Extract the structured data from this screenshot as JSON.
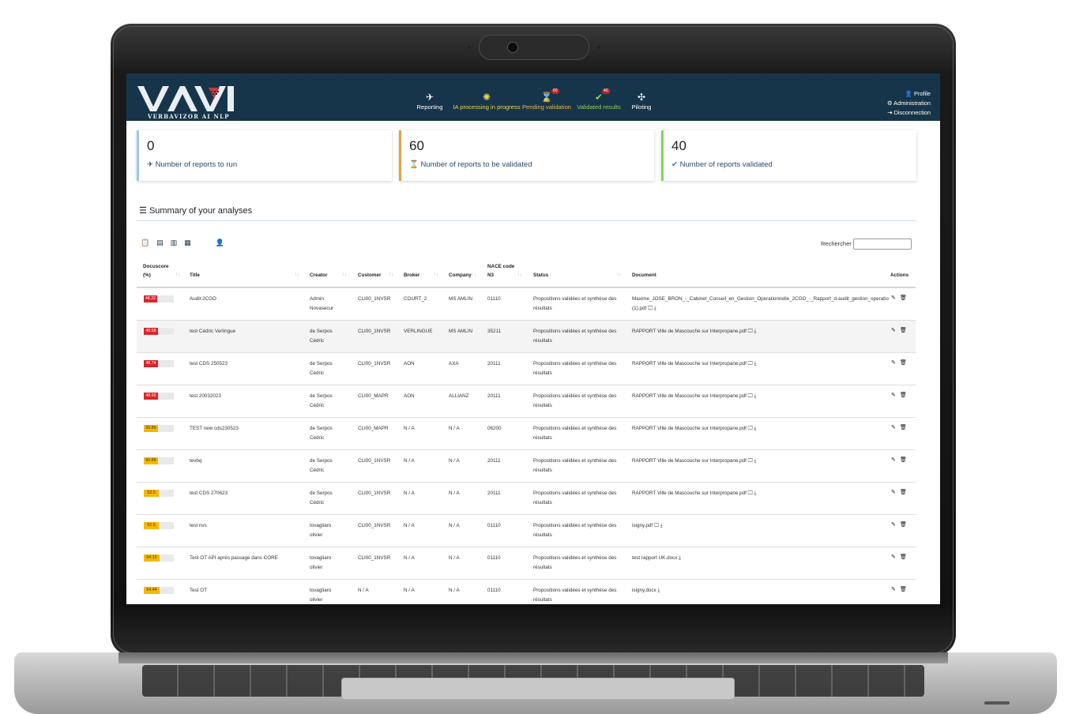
{
  "app": {
    "logo": "VAVI",
    "logo_subtitle": "VERBAVIZOR AI NLP"
  },
  "nav": {
    "items": [
      {
        "label": "Reporting",
        "icon": "plane-icon",
        "color": "#ffffff",
        "badge": ""
      },
      {
        "label": "IA processing in progress",
        "icon": "ai-chip-icon",
        "color": "#e8d84a",
        "badge": ""
      },
      {
        "label": "Pending validation",
        "icon": "hourglass-icon",
        "color": "#e8b84a",
        "badge": "60"
      },
      {
        "label": "Validated results",
        "icon": "check-badge-icon",
        "color": "#8fd14f",
        "badge": "40"
      },
      {
        "label": "Piloting",
        "icon": "drone-icon",
        "color": "#ffffff",
        "badge": ""
      }
    ],
    "right": {
      "profile": "Profile",
      "administration": "Administration",
      "disconnection": "Disconnection"
    }
  },
  "cards": [
    {
      "value": "0",
      "label": "Number of reports to run",
      "accent": "#9cc7ea",
      "icon": "plane-icon",
      "label_color": "#2c4a6b"
    },
    {
      "value": "60",
      "label": "Number of reports to be validated",
      "accent": "#e6a23c",
      "icon": "hourglass-icon",
      "label_color": "#2c4a6b"
    },
    {
      "value": "40",
      "label": "Number of reports validated",
      "accent": "#7ed957",
      "icon": "check-badge-icon",
      "label_color": "#2c4a6b"
    }
  ],
  "summary": {
    "title": "Summary of your analyses",
    "search_label": "Rechercher :",
    "search_value": ""
  },
  "table": {
    "headers": {
      "docuscore": "Docuscore",
      "docuscore_unit": "(%)",
      "title": "Title",
      "creator": "Creator",
      "customer": "Customer",
      "broker": "Broker",
      "company": "Company",
      "nace": "NACE code",
      "nace_level": "N3",
      "status": "Status",
      "document": "Document",
      "actions": "Actions"
    },
    "rows": [
      {
        "score": "48.22",
        "score_value": 48.22,
        "score_color": "#d9262b",
        "title": "Audit 2CGO",
        "creator1": "Admin",
        "creator2": "Novasecur",
        "customer": "CLI00_1NVSR",
        "broker": "COURT_2",
        "company": "MS AMLIN",
        "nace": "01110",
        "status1": "Propositions validées et synthèse des",
        "status2": "résultats",
        "doc1": "Maxime_JOSE_BRON_-_Cabinet_Conseil_en_Gestion_Operationnelle_2CGO_-_Rapport_d-audit_gestion_operatio",
        "doc2": "(1).pdf"
      },
      {
        "score": "48.58",
        "score_value": 48.58,
        "score_color": "#d9262b",
        "title": "test Cédric Verlingue",
        "creator1": "de Serpos",
        "creator2": "Cédric",
        "customer": "CLI00_1NVSR",
        "broker": "VERLINGUE",
        "company": "MS AMLIN",
        "nace": "35211",
        "status1": "Propositions validées et synthèse des",
        "status2": "résultats",
        "doc1": "RAPPORT Ville de Mascouche sur Interpropane.pdf",
        "doc2": ""
      },
      {
        "score": "48.74",
        "score_value": 48.74,
        "score_color": "#d9262b",
        "title": "test CDS 250523",
        "creator1": "de Serpos",
        "creator2": "Cédric",
        "customer": "CLI00_1NVSR",
        "broker": "AON",
        "company": "AXA",
        "nace": "20111",
        "status1": "Propositions validées et synthèse des",
        "status2": "résultats",
        "doc1": "RAPPORT Ville de Mascouche sur Interpropane.pdf",
        "doc2": ""
      },
      {
        "score": "48.93",
        "score_value": 48.93,
        "score_color": "#d9262b",
        "title": "test 20032023",
        "creator1": "de Serpos",
        "creator2": "Cédric",
        "customer": "CLI00_MAPR",
        "broker": "AON",
        "company": "ALLIANZ",
        "nace": "20111",
        "status1": "Propositions validées et synthèse des",
        "status2": "résultats",
        "doc1": "RAPPORT Ville de Mascouche sur Interpropane.pdf",
        "doc2": ""
      },
      {
        "score": "50.89",
        "score_value": 50.89,
        "score_color": "#f5b800",
        "title": "TEST new cds230523",
        "creator1": "de Serpos",
        "creator2": "Cédric",
        "customer": "CLI00_MAPR",
        "broker": "N / A",
        "company": "N / A",
        "nace": "06200",
        "status1": "Propositions validées et synthèse des",
        "status2": "résultats",
        "doc1": "RAPPORT Ville de Mascouche sur Interpropane.pdf",
        "doc2": ""
      },
      {
        "score": "50.89",
        "score_value": 50.89,
        "score_color": "#f5b800",
        "title": "tevbq",
        "creator1": "de Serpos",
        "creator2": "Cédric",
        "customer": "CLI00_1NVSR",
        "broker": "N / A",
        "company": "N / A",
        "nace": "20111",
        "status1": "Propositions validées et synthèse des",
        "status2": "résultats",
        "doc1": "RAPPORT Ville de Mascouche sur Interpropane.pdf",
        "doc2": ""
      },
      {
        "score": "52.5",
        "score_value": 52.5,
        "score_color": "#f5b800",
        "title": "test CDS 270623",
        "creator1": "de Serpos",
        "creator2": "Cédric",
        "customer": "CLI00_1NVSR",
        "broker": "N / A",
        "company": "N / A",
        "nace": "20111",
        "status1": "Propositions validées et synthèse des",
        "status2": "résultats",
        "doc1": "RAPPORT Ville de Mascouche sur Interpropane.pdf",
        "doc2": ""
      },
      {
        "score": "52.5",
        "score_value": 52.5,
        "score_color": "#f5b800",
        "title": "test nvs",
        "creator1": "tovagliaro",
        "creator2": "olivier",
        "customer": "CLI00_1NVSR",
        "broker": "N / A",
        "company": "N / A",
        "nace": "01110",
        "status1": "Propositions validées et synthèse des",
        "status2": "résultats",
        "doc1": "isigny.pdf",
        "doc2": ""
      },
      {
        "score": "54.12",
        "score_value": 54.12,
        "score_color": "#f5b800",
        "title": "Test OT API après passage dans CORE",
        "creator1": "tovagliaro",
        "creator2": "olivier",
        "customer": "CLI00_1NVSR",
        "broker": "N / A",
        "company": "N / A",
        "nace": "01110",
        "status1": "Propositions validées et synthèse des",
        "status2": "résultats",
        "doc1": "test rapport UK.docx",
        "doc2": ""
      },
      {
        "score": "54.44",
        "score_value": 54.44,
        "score_color": "#f5b800",
        "title": "Test OT",
        "creator1": "tovagliaro",
        "creator2": "olivier",
        "customer": "N / A",
        "broker": "N / A",
        "company": "N / A",
        "nace": "01110",
        "status1": "Propositions validées et synthèse des",
        "status2": "résultats",
        "doc1": "isigny.docx",
        "doc2": ""
      }
    ]
  },
  "colors": {
    "topbar": "#17354a",
    "accent_blue": "#9cc7ea",
    "accent_orange": "#e6a23c",
    "accent_green": "#7ed957"
  }
}
